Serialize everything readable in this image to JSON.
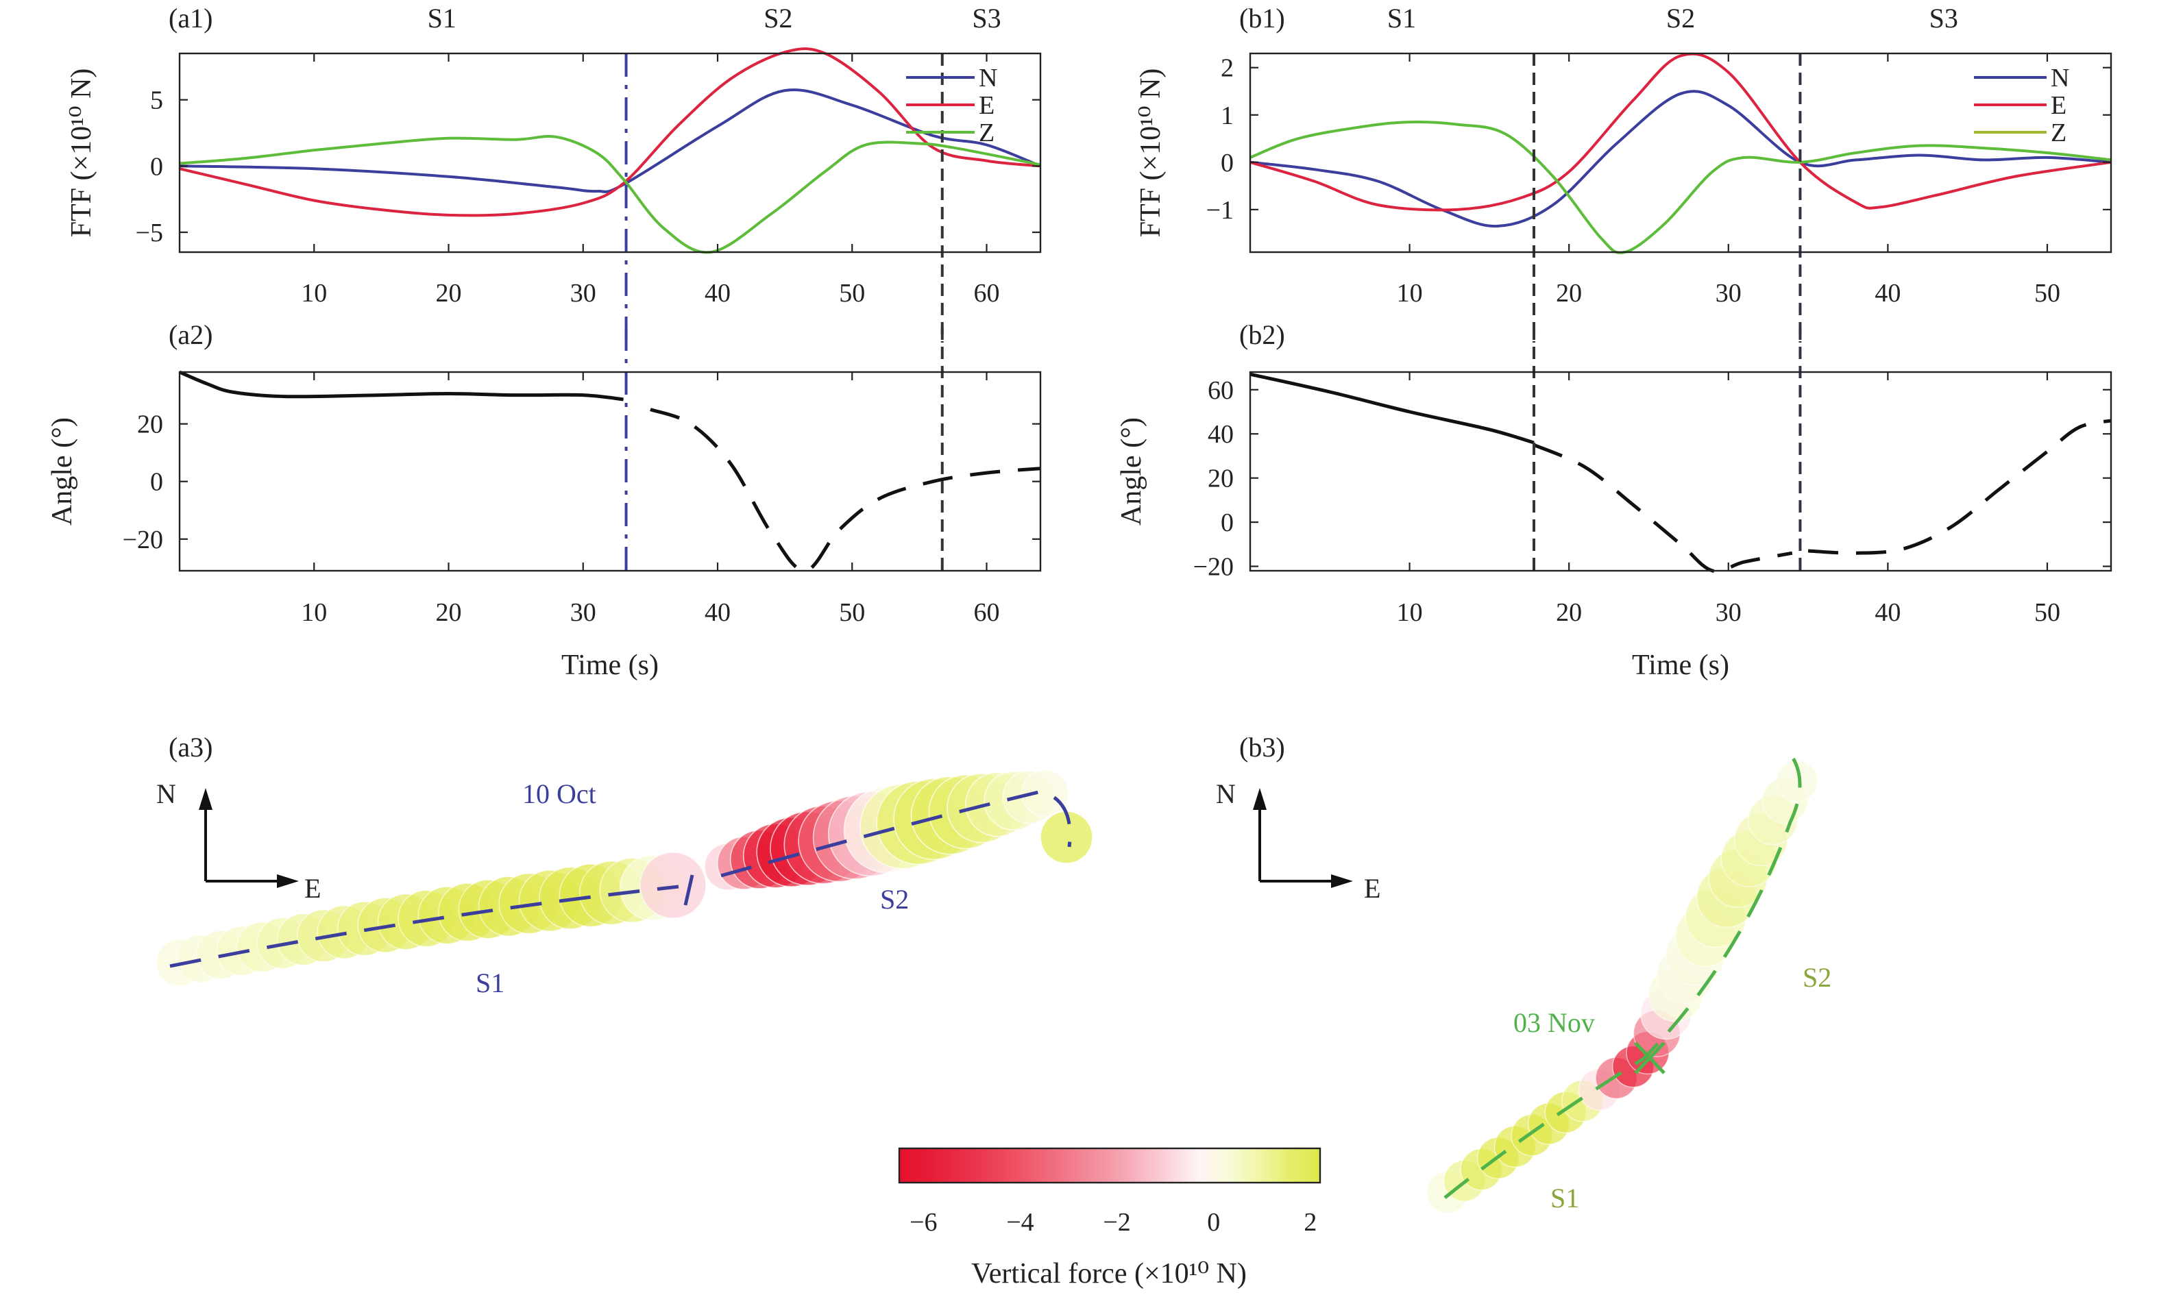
{
  "chart_data": [
    {
      "id": "a1",
      "panel_label": "(a1)",
      "type": "line",
      "ylabel": "FTF (×10¹⁰ N)",
      "xlim": [
        0,
        64
      ],
      "ylim": [
        -6.5,
        8.5
      ],
      "xticks": [
        10,
        20,
        30,
        40,
        50,
        60
      ],
      "yticks": [
        -5,
        0,
        5
      ],
      "segment_labels": [
        {
          "text": "S1",
          "x": 19.5
        },
        {
          "text": "S2",
          "x": 44.5
        },
        {
          "text": "S3",
          "x": 60
        }
      ],
      "vlines": [
        {
          "x": 33.2,
          "color": "#3b3e9c",
          "dash": "34,12,6,12"
        },
        {
          "x": 56.7,
          "color": "#333333",
          "dash": "18,10"
        }
      ],
      "legend": [
        "N",
        "E",
        "Z"
      ],
      "series": [
        {
          "name": "N",
          "color": "#3b3e9c",
          "x": [
            0,
            10,
            20,
            28,
            31,
            33,
            40,
            45,
            50,
            56,
            60,
            64
          ],
          "y": [
            0,
            -0.2,
            -0.8,
            -1.6,
            -1.9,
            -1.4,
            3.0,
            5.7,
            4.6,
            2.3,
            1.6,
            0
          ]
        },
        {
          "name": "E",
          "color": "#dc2440",
          "x": [
            0,
            5,
            10,
            15,
            20,
            25,
            30,
            33,
            37,
            41,
            45,
            48,
            52,
            56,
            60,
            64
          ],
          "y": [
            -0.2,
            -1.4,
            -2.6,
            -3.3,
            -3.7,
            -3.6,
            -2.8,
            -1.3,
            3.0,
            6.6,
            8.6,
            8.5,
            5.6,
            1.4,
            0.4,
            0
          ]
        },
        {
          "name": "Z",
          "color": "#5dbc3a",
          "x": [
            0,
            5,
            10,
            15,
            20,
            25,
            28,
            31,
            33,
            36,
            39.5,
            44,
            48,
            51,
            55,
            58,
            64
          ],
          "y": [
            0.2,
            0.6,
            1.2,
            1.7,
            2.1,
            2.0,
            2.2,
            1.0,
            -1.0,
            -4.7,
            -6.5,
            -3.6,
            -0.4,
            1.6,
            1.7,
            1.3,
            0.1
          ]
        }
      ]
    },
    {
      "id": "a2",
      "panel_label": "(a2)",
      "type": "line",
      "xlabel": "Time (s)",
      "ylabel": "Angle (°)",
      "xlim": [
        0,
        64
      ],
      "ylim": [
        -31,
        38
      ],
      "xticks": [
        10,
        20,
        30,
        40,
        50,
        60
      ],
      "yticks": [
        -20,
        0,
        20
      ],
      "vlines": [
        {
          "x": 33.2,
          "color": "#3b3e9c",
          "dash": "34,12,6,12"
        },
        {
          "x": 56.7,
          "color": "#333333",
          "dash": "18,10"
        }
      ],
      "series": [
        {
          "name": "S1 angle",
          "color": "#111111",
          "style": "solid",
          "x": [
            0,
            2,
            4,
            8,
            15,
            20,
            25,
            30,
            33
          ],
          "y": [
            38,
            34,
            31,
            29.5,
            30,
            30.5,
            30,
            30,
            28.5
          ]
        },
        {
          "name": "S2 angle",
          "color": "#111111",
          "style": "dashed",
          "x": [
            35,
            38,
            41,
            44,
            46.5,
            49,
            52,
            56,
            60,
            64
          ],
          "y": [
            25,
            20,
            6,
            -18,
            -31,
            -17,
            -6,
            0,
            3,
            4.5
          ]
        }
      ]
    },
    {
      "id": "b1",
      "panel_label": "(b1)",
      "type": "line",
      "ylabel": "FTF (×10¹⁰ N)",
      "xlim": [
        0,
        54
      ],
      "ylim": [
        -1.9,
        2.3
      ],
      "xticks": [
        10,
        20,
        30,
        40,
        50
      ],
      "yticks": [
        -1,
        0,
        1,
        2
      ],
      "segment_labels": [
        {
          "text": "S1",
          "x": 9.5
        },
        {
          "text": "S2",
          "x": 27
        },
        {
          "text": "S3",
          "x": 43.5
        }
      ],
      "vlines": [
        {
          "x": 17.8,
          "color": "#333333",
          "dash": "18,10"
        },
        {
          "x": 34.5,
          "color": "#333344",
          "dash": "18,10"
        }
      ],
      "legend": [
        "N",
        "E",
        "Z"
      ],
      "series": [
        {
          "name": "N",
          "color": "#3b3e9c",
          "x": [
            0,
            4,
            8,
            12,
            15.5,
            19,
            23,
            27,
            30,
            34.5,
            38,
            42,
            46,
            50,
            54
          ],
          "y": [
            0,
            -0.15,
            -0.4,
            -1.0,
            -1.35,
            -0.9,
            0.4,
            1.45,
            1.2,
            0,
            0.05,
            0.15,
            0.05,
            0.1,
            0
          ]
        },
        {
          "name": "E",
          "color": "#dc2440",
          "x": [
            0,
            4,
            8,
            13,
            17,
            20,
            24,
            27,
            30,
            34.5,
            38,
            39.5,
            43,
            48,
            54
          ],
          "y": [
            0,
            -0.4,
            -0.9,
            -1.0,
            -0.75,
            -0.2,
            1.3,
            2.25,
            1.9,
            0,
            -0.85,
            -0.95,
            -0.7,
            -0.3,
            0
          ]
        },
        {
          "name": "Z",
          "color": "#5dbc3a",
          "x": [
            0,
            3,
            7,
            10,
            13,
            16,
            19,
            22,
            23.5,
            26,
            29,
            31,
            34.5,
            38,
            42,
            46,
            50,
            54
          ],
          "y": [
            0.1,
            0.5,
            0.75,
            0.85,
            0.8,
            0.6,
            -0.3,
            -1.6,
            -1.9,
            -1.3,
            -0.2,
            0.1,
            0,
            0.2,
            0.35,
            0.3,
            0.2,
            0.05
          ]
        }
      ]
    },
    {
      "id": "b2",
      "panel_label": "(b2)",
      "type": "line",
      "xlabel": "Time (s)",
      "ylabel": "Angle (°)",
      "xlim": [
        0,
        54
      ],
      "ylim": [
        -22,
        68
      ],
      "xticks": [
        10,
        20,
        30,
        40,
        50
      ],
      "yticks": [
        -20,
        0,
        20,
        40,
        60
      ],
      "vlines": [
        {
          "x": 17.8,
          "color": "#333333",
          "dash": "18,10"
        },
        {
          "x": 34.5,
          "color": "#333344",
          "dash": "18,10"
        }
      ],
      "series": [
        {
          "name": "S1 angle",
          "color": "#111111",
          "style": "solid",
          "x": [
            0,
            5,
            10,
            15,
            17.8
          ],
          "y": [
            67,
            59,
            50,
            42,
            36
          ]
        },
        {
          "name": "S2 angle",
          "color": "#111111",
          "style": "dashed",
          "x": [
            17.8,
            21,
            24,
            27,
            29,
            31,
            34
          ],
          "y": [
            35,
            25,
            8,
            -10,
            -22,
            -18,
            -14
          ]
        },
        {
          "name": "S3 angle",
          "color": "#111111",
          "style": "dashed",
          "x": [
            35,
            38,
            41,
            44,
            47,
            50,
            52,
            54
          ],
          "y": [
            -13,
            -14,
            -12,
            -2,
            15,
            32,
            43,
            46
          ]
        }
      ]
    }
  ],
  "maps": {
    "a3": {
      "panel_label": "(a3)",
      "north": "N",
      "east": "E",
      "date": "10 Oct",
      "s1": "S1",
      "s2": "S2"
    },
    "b3": {
      "panel_label": "(b3)",
      "north": "N",
      "east": "E",
      "date": "03 Nov",
      "s1": "S1",
      "s2": "S2"
    }
  },
  "colorbar": {
    "label": "Vertical force (×10¹⁰ N)",
    "range": [
      -6.5,
      2.2
    ],
    "ticks": [
      "−6",
      "−4",
      "−2",
      "0",
      "2"
    ],
    "tick_values": [
      -6,
      -4,
      -2,
      0,
      2
    ],
    "stops": [
      "#e5102b",
      "#e71c36",
      "#ea2b44",
      "#ec3e55",
      "#ef5466",
      "#f06b7b",
      "#f28393",
      "#f59aa8",
      "#f8b6c2",
      "#fbd5dd",
      "#fff5f5",
      "#f8fbd7",
      "#f0f6a4",
      "#e5ee6c",
      "#dfe84a"
    ]
  },
  "colors": {
    "N": "#3b3e9c",
    "E": "#dc2440",
    "Z": "#5dbc3a",
    "accent_green": "#4fb24a"
  }
}
